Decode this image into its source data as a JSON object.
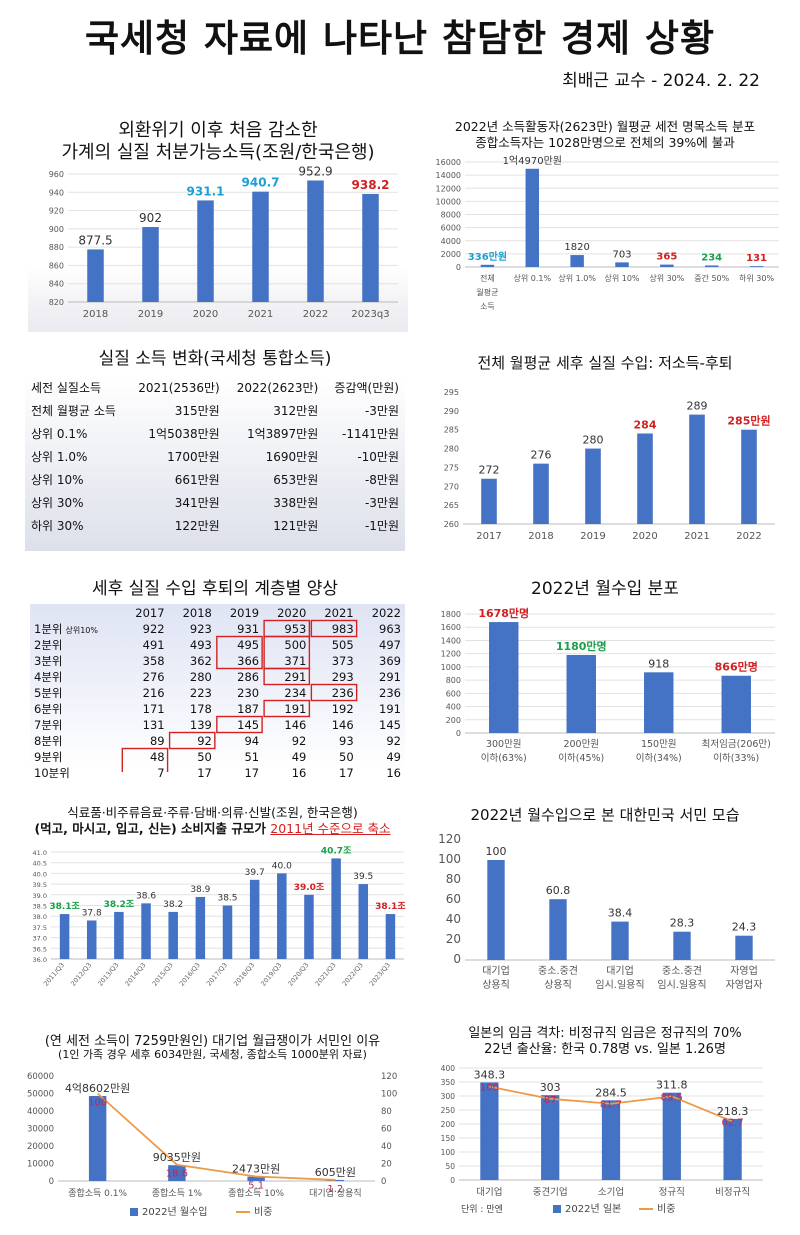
{
  "header": {
    "title": "국세청 자료에 나타난 참담한 경제 상황",
    "author": "최배근 교수 - 2024. 2. 22"
  },
  "chart_data": [
    {
      "id": "c1",
      "type": "bar",
      "title": "외환위기 이후 처음 감소한",
      "subtitle": "가계의 실질 처분가능소득(조원/한국은행)",
      "categories": [
        "2018",
        "2019",
        "2020",
        "2021",
        "2022",
        "2023q3"
      ],
      "values": [
        877.5,
        902,
        931.1,
        940.7,
        952.9,
        938.2
      ],
      "labels": [
        "877.5",
        "902",
        "931.1",
        "940.7",
        "952.9",
        "938.2"
      ],
      "label_colors": [
        "#333333",
        "#333333",
        "#1a9fd6",
        "#1a9fd6",
        "#333333",
        "#d42020"
      ],
      "yticks": [
        "820",
        "840",
        "860",
        "880",
        "900",
        "920",
        "940",
        "960"
      ],
      "ylim": [
        820,
        960
      ]
    },
    {
      "id": "c2",
      "type": "bar",
      "title": "2022년 소득활동자(2623만) 월평균 세전 명목소득 분포",
      "subtitle": "종합소득자는 1028만명으로 전체의 39%에 불과",
      "categories": [
        "전체 월평균 소득",
        "상위 0.1%",
        "상위 1.0%",
        "상위 10%",
        "상위 30%",
        "중간 50%",
        "하위 30%"
      ],
      "values": [
        336,
        14970,
        1820,
        703,
        365,
        234,
        131
      ],
      "labels": [
        "336만원",
        "1억4970만원",
        "1820",
        "703",
        "365",
        "234",
        "131"
      ],
      "label_colors": [
        "#1a9fd6",
        "#333333",
        "#333333",
        "#333333",
        "#d42020",
        "#1aa04a",
        "#d42020"
      ],
      "yticks": [
        "0",
        "2000",
        "4000",
        "6000",
        "8000",
        "10000",
        "12000",
        "14000",
        "16000"
      ],
      "ylim": [
        0,
        16000
      ]
    },
    {
      "id": "t1",
      "type": "table",
      "title": "실질 소득 변화(국세청 통합소득)",
      "header": [
        "세전 실질소득",
        "2021(2536만)",
        "2022(2623만)",
        "증감액(만원)"
      ],
      "rows": [
        [
          "전체 월평균 소득",
          "315만원",
          "312만원",
          "-3만원"
        ],
        [
          "상위 0.1%",
          "1억5038만원",
          "1억3897만원",
          "-1141만원"
        ],
        [
          "상위 1.0%",
          "1700만원",
          "1690만원",
          "-10만원"
        ],
        [
          "상위 10%",
          "661만원",
          "653만원",
          "-8만원"
        ],
        [
          "상위 30%",
          "341만원",
          "338만원",
          "-3만원"
        ],
        [
          "하위 30%",
          "122만원",
          "121만원",
          "-1만원"
        ]
      ]
    },
    {
      "id": "c3",
      "type": "bar",
      "title": "전체 월평균 세후 실질 수입: 저소득-후퇴",
      "categories": [
        "2017",
        "2018",
        "2019",
        "2020",
        "2021",
        "2022"
      ],
      "values": [
        272,
        276,
        280,
        284,
        289,
        285
      ],
      "labels": [
        "272",
        "276",
        "280",
        "284",
        "289",
        "285만원"
      ],
      "label_colors": [
        "#333333",
        "#333333",
        "#333333",
        "#d42020",
        "#333333",
        "#d42020"
      ],
      "yticks": [
        "260",
        "265",
        "270",
        "275",
        "280",
        "285",
        "290",
        "295"
      ],
      "ylim": [
        260,
        295
      ]
    },
    {
      "id": "t2",
      "type": "table",
      "title": "세후 실질 수입 후퇴의 계층별 양상",
      "header": [
        "",
        "2017",
        "2018",
        "2019",
        "2020",
        "2021",
        "2022"
      ],
      "rows": [
        [
          "1분위",
          "922",
          "923",
          "931",
          "953",
          "983",
          "963"
        ],
        [
          "2분위",
          "491",
          "493",
          "495",
          "500",
          "505",
          "497"
        ],
        [
          "3분위",
          "358",
          "362",
          "366",
          "371",
          "373",
          "369"
        ],
        [
          "4분위",
          "276",
          "280",
          "286",
          "291",
          "293",
          "291"
        ],
        [
          "5분위",
          "216",
          "223",
          "230",
          "234",
          "236",
          "236"
        ],
        [
          "6분위",
          "171",
          "178",
          "187",
          "191",
          "192",
          "191"
        ],
        [
          "7분위",
          "131",
          "139",
          "145",
          "146",
          "146",
          "145"
        ],
        [
          "8분위",
          "89",
          "92",
          "94",
          "92",
          "93",
          "92"
        ],
        [
          "9분위",
          "48",
          "50",
          "51",
          "49",
          "50",
          "49"
        ],
        [
          "10분위",
          "7",
          "17",
          "17",
          "16",
          "17",
          "16"
        ]
      ],
      "note": "상위10%"
    },
    {
      "id": "c4",
      "type": "bar",
      "title": "2022년 월수입 분포",
      "categories": [
        "300만원 이하(63%)",
        "200만원 이하(45%)",
        "150만원 이하(34%)",
        "최저임금(206만) 이하(33%)"
      ],
      "values": [
        1678,
        1180,
        918,
        866
      ],
      "labels": [
        "1678만명",
        "1180만명",
        "918",
        "866만명"
      ],
      "label_colors": [
        "#d42020",
        "#1aa04a",
        "#333333",
        "#d42020"
      ],
      "yticks": [
        "0",
        "200",
        "400",
        "600",
        "800",
        "1000",
        "1200",
        "1400",
        "1600",
        "1800"
      ],
      "ylim": [
        0,
        1800
      ]
    },
    {
      "id": "c5",
      "type": "bar",
      "title": "식료품·비주류음료·주류·담배·의류·신발(조원, 한국은행)",
      "subtitle_a": "(먹고, 마시고, 입고, 신는) 소비지출 규모가 ",
      "subtitle_b": "2011년 수준으로 축소",
      "categories": [
        "2011/Q3",
        "2012/Q3",
        "2013/Q3",
        "2014/Q3",
        "2015/Q3",
        "2016/Q3",
        "2017/Q3",
        "2018/Q3",
        "2019/Q3",
        "2020/Q3",
        "2021/Q3",
        "2022/Q3",
        "2023/Q3"
      ],
      "values": [
        38.1,
        37.8,
        38.2,
        38.6,
        38.2,
        38.9,
        38.5,
        39.7,
        40.0,
        39.0,
        40.7,
        39.5,
        38.1
      ],
      "labels": [
        "38.1조",
        "37.8",
        "38.2조",
        "38.6",
        "38.2",
        "38.9",
        "38.5",
        "39.7",
        "40.0",
        "39.0조",
        "40.7조",
        "39.5",
        "38.1조"
      ],
      "label_colors": [
        "#1aa04a",
        "#333333",
        "#1aa04a",
        "#333333",
        "#333333",
        "#333333",
        "#333333",
        "#333333",
        "#333333",
        "#d42020",
        "#1aa04a",
        "#333333",
        "#d42020"
      ],
      "yticks": [
        "36.0",
        "36.5",
        "37.0",
        "37.5",
        "38.0",
        "38.5",
        "39.0",
        "39.5",
        "40.0",
        "40.5",
        "41.0"
      ],
      "ylim": [
        36,
        41
      ]
    },
    {
      "id": "c6",
      "type": "bar",
      "title": "2022년 월수입으로 본 대한민국 서민 모습",
      "categories": [
        "대기업 상용직",
        "중소.중견 상용직",
        "대기업 임시.일용직",
        "중소.중견 임시.일용직",
        "자영업자"
      ],
      "values": [
        100,
        60.8,
        38.4,
        28.3,
        24.3
      ],
      "labels": [
        "100",
        "60.8",
        "38.4",
        "28.3",
        "24.3"
      ],
      "yticks": [
        "0",
        "20",
        "40",
        "60",
        "80",
        "100",
        "120"
      ],
      "ylim": [
        0,
        120
      ]
    },
    {
      "id": "c7",
      "type": "bar+line",
      "title": "(연 세전 소득이 7259만원인) 대기업 월급쟁이가 서민인 이유",
      "subtitle": "(1인 가족 경우 세후 6034만원, 국세청, 종합소득 1000분위 자료)",
      "categories": [
        "종합소득 0.1%",
        "종합소득 1%",
        "종합소득 10%",
        "대기업 상용직"
      ],
      "series": [
        {
          "name": "2022년 월수입",
          "values": [
            48602,
            9035,
            2473,
            605
          ],
          "labels": [
            "4억8602만원",
            "9035만원",
            "2473만원",
            "605만원"
          ]
        },
        {
          "name": "비중",
          "values": [
            100,
            18.6,
            5.1,
            1.2
          ]
        }
      ],
      "yticks": [
        "0",
        "10000",
        "20000",
        "30000",
        "40000",
        "50000",
        "60000"
      ],
      "ylim": [
        0,
        60000
      ],
      "y2ticks": [
        "0",
        "20",
        "40",
        "60",
        "80",
        "100",
        "120"
      ],
      "y2lim": [
        0,
        120
      ]
    },
    {
      "id": "c8",
      "type": "bar+line",
      "title": "일본의 임금 격차: 비정규직 임금은 정규직의 70%",
      "subtitle": "22년 출산율: 한국 0.78명 vs. 일본 1.26명",
      "categories": [
        "대기업",
        "중견기업",
        "소기업",
        "정규직",
        "비정규직"
      ],
      "series": [
        {
          "name": "2022년 일본",
          "values": [
            348.3,
            303,
            284.5,
            311.8,
            218.3
          ]
        },
        {
          "name": "비중",
          "values": [
            100,
            87,
            81.7,
            89.5,
            62.7
          ]
        }
      ],
      "yticks": [
        "0",
        "50",
        "100",
        "150",
        "200",
        "250",
        "300",
        "350",
        "400"
      ],
      "ylim": [
        0,
        400
      ],
      "y2lim": [
        0,
        120
      ],
      "unit_note": "단위 : 만엔"
    }
  ]
}
